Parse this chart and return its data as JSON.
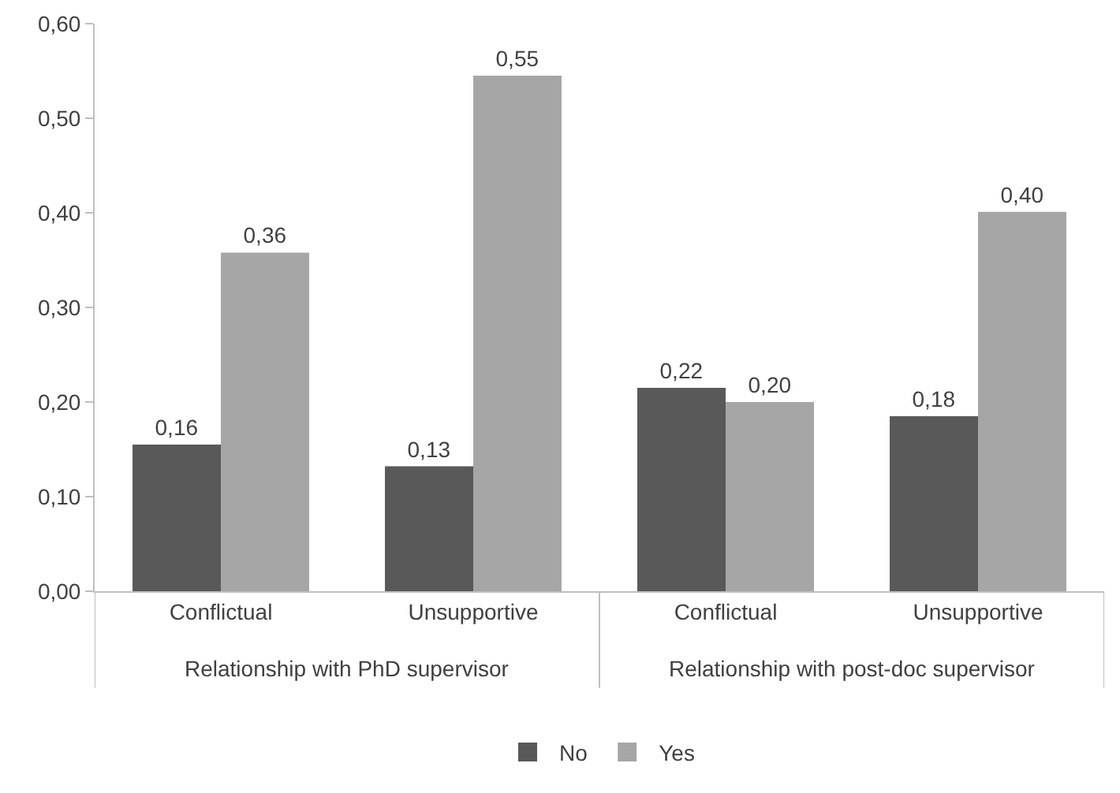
{
  "chart_data": {
    "type": "bar",
    "categories": [
      "Conflictual",
      "Unsupportive",
      "Conflictual",
      "Unsupportive"
    ],
    "series": [
      {
        "name": "No",
        "color": "#595959",
        "values": [
          0.155,
          0.132,
          0.215,
          0.185
        ],
        "value_labels": [
          "0,16",
          "0,13",
          "0,22",
          "0,18"
        ]
      },
      {
        "name": "Yes",
        "color": "#a6a6a6",
        "values": [
          0.358,
          0.545,
          0.2,
          0.401
        ],
        "value_labels": [
          "0,36",
          "0,55",
          "0,20",
          "0,40"
        ]
      }
    ],
    "ylim": [
      0,
      0.6
    ],
    "yticks": [
      {
        "value": 0,
        "label": "0,00"
      },
      {
        "value": 0.1,
        "label": "0,10"
      },
      {
        "value": 0.2,
        "label": "0,20"
      },
      {
        "value": 0.3,
        "label": "0,30"
      },
      {
        "value": 0.4,
        "label": "0,40"
      },
      {
        "value": 0.5,
        "label": "0,50"
      },
      {
        "value": 0.6,
        "label": "0,60"
      }
    ],
    "annotations": [
      "Relationship with PhD supervisor",
      "Relationship with post-doc supervisor"
    ],
    "grid": false,
    "legend": "bottom"
  }
}
